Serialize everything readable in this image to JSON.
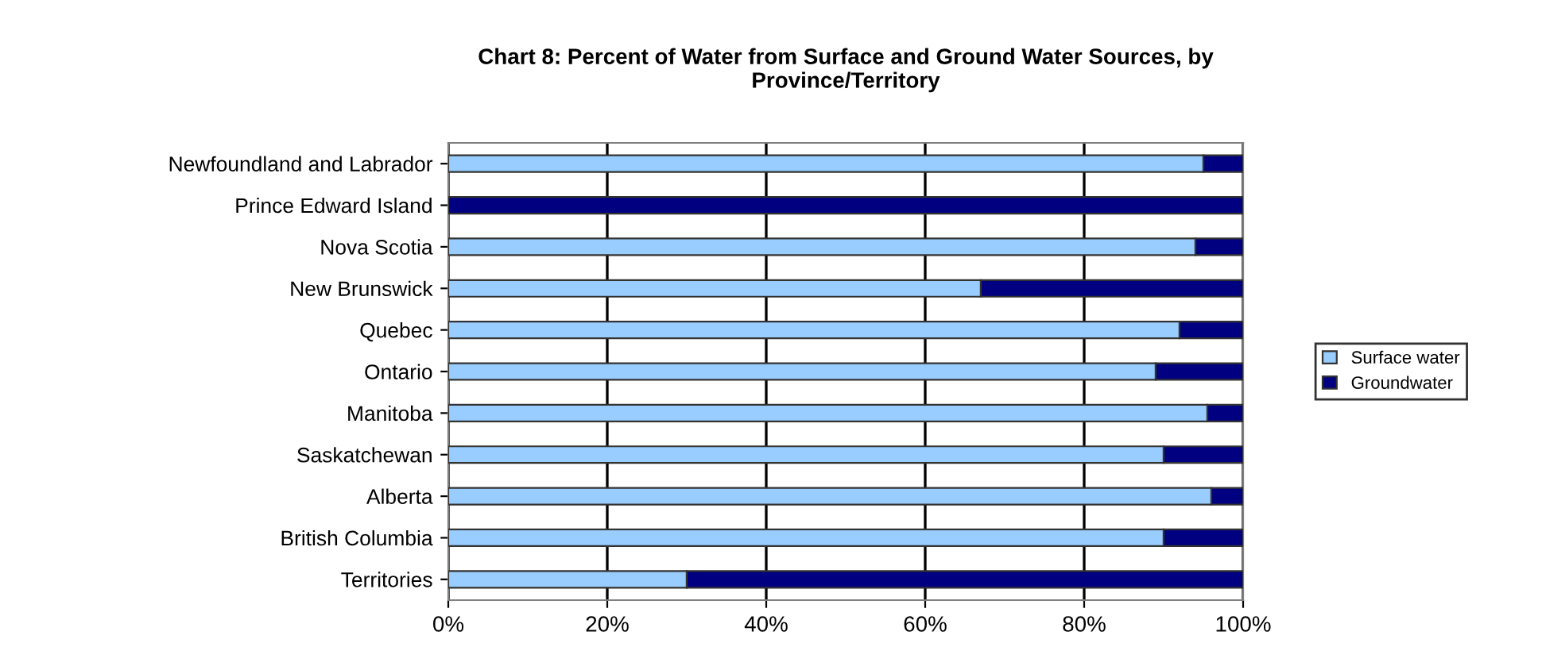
{
  "chart_data": {
    "type": "bar",
    "orientation": "horizontal",
    "stacked": true,
    "title": "Chart 8: Percent of Water from Surface and Ground Water Sources, by\nProvince/Territory",
    "categories": [
      "Newfoundland and Labrador",
      "Prince Edward Island",
      "Nova Scotia",
      "New Brunswick",
      "Quebec",
      "Ontario",
      "Manitoba",
      "Saskatchewan",
      "Alberta",
      "British Columbia",
      "Territories"
    ],
    "series": [
      {
        "name": "Surface water",
        "color": "#99ccff",
        "values": [
          95,
          0,
          94,
          67,
          92,
          89,
          95.5,
          90,
          96,
          90,
          30
        ]
      },
      {
        "name": "Groundwater",
        "color": "#000080",
        "values": [
          5,
          100,
          6,
          33,
          8,
          11,
          4.5,
          10,
          4,
          10,
          70
        ]
      }
    ],
    "xlim": [
      0,
      100
    ],
    "xticks": [
      {
        "value": 0,
        "label": "0%"
      },
      {
        "value": 20,
        "label": "20%"
      },
      {
        "value": 40,
        "label": "40%"
      },
      {
        "value": 60,
        "label": "60%"
      },
      {
        "value": 80,
        "label": "80%"
      },
      {
        "value": 100,
        "label": "100%"
      }
    ],
    "grid": "x",
    "legend": "right"
  }
}
